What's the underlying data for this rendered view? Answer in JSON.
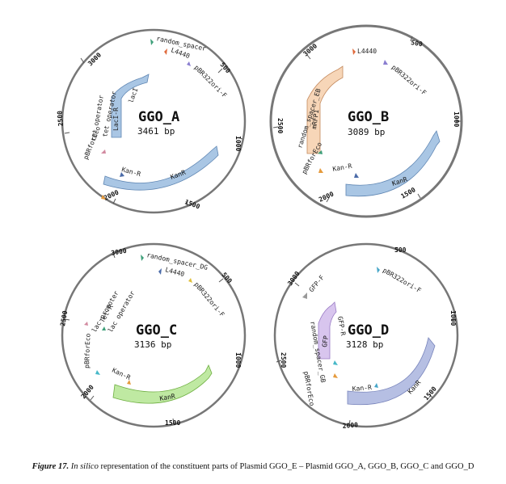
{
  "colors": {
    "ring": "#777777",
    "kanr": "#a9c6e4",
    "kanr_stroke": "#5f86b3",
    "mrfp1": "#f7d6b8",
    "mrfp1_stroke": "#c48a5e",
    "lacI": "#a9c6e4",
    "tetr": "#bfe9a2",
    "tetr_stroke": "#6dae3f",
    "gfp": "#d8c5ee",
    "gfp_stroke": "#9a7cc5",
    "kanr_d": "#b6bfe3",
    "kanr_d_stroke": "#7884bb"
  },
  "plasmids": [
    {
      "name": "GGO_A",
      "size": "3461 bp",
      "ticks": [
        "3000",
        "500",
        "1000",
        "1500",
        "2000",
        "2500"
      ],
      "labels": [
        "random_spacer",
        "L4440",
        "pBR322ori-F",
        "lacI",
        "LacI-R",
        "tet operator",
        "tet operator",
        "pBRforEco",
        "Kan-R",
        "KanR"
      ]
    },
    {
      "name": "GGO_B",
      "size": "3089 bp",
      "ticks": [
        "3000",
        "500",
        "1000",
        "1500",
        "2000",
        "2500"
      ],
      "labels": [
        "L4440",
        "pBR322ori-F",
        "random_spacer_EB",
        "mRFP1",
        "pBRforEco",
        "Kan-R",
        "KanR"
      ]
    },
    {
      "name": "GGO_C",
      "size": "3136 bp",
      "ticks": [
        "3000",
        "500",
        "1000",
        "1500",
        "2000",
        "2500"
      ],
      "labels": [
        "random_spacer_DG",
        "L4440",
        "pBR322ori-F",
        "lac promoter",
        "Tet-R",
        "lac operator",
        "pBRforEco",
        "Kan-R",
        "KanR"
      ]
    },
    {
      "name": "GGO_D",
      "size": "3128 bp",
      "ticks": [
        "3000",
        "500",
        "1000",
        "1500",
        "2000",
        "2500"
      ],
      "labels": [
        "GFP-F",
        "pBR322ori-F",
        "GFP-R",
        "GFP",
        "random_spacer_GB",
        "pBRforEco",
        "Kan-R",
        "KanR"
      ]
    }
  ],
  "caption": {
    "figure": "Figure 17.",
    "insilico": "In silico",
    "text": " representation of the constituent parts of Plasmid GGO_E – Plasmid GGO_A, GGO_B, GGO_C and GGO_D"
  }
}
